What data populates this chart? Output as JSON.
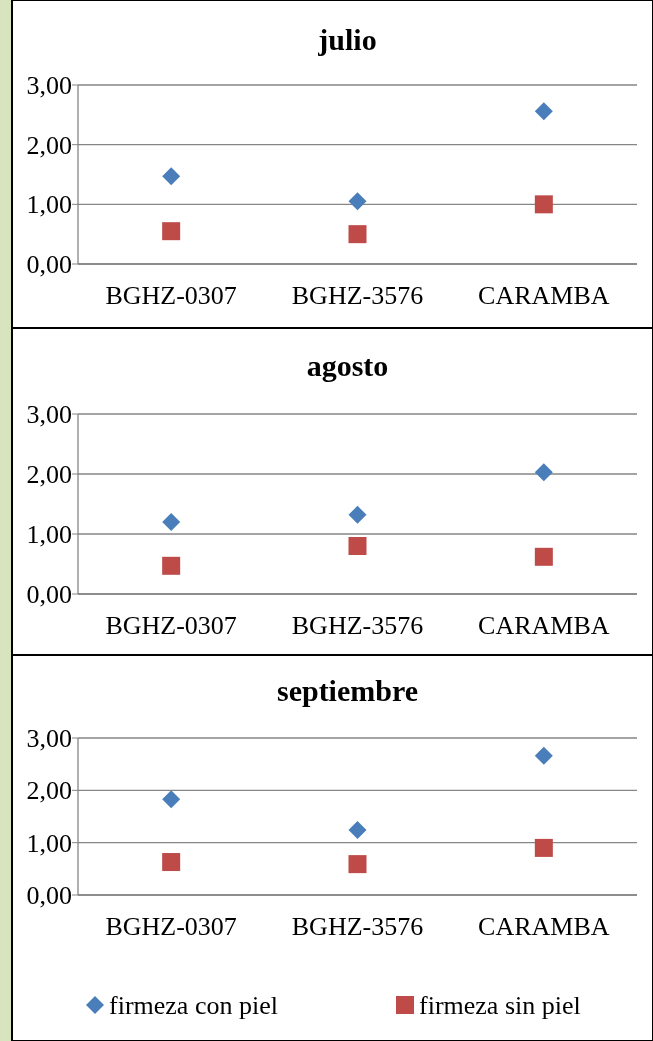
{
  "chart_data": [
    {
      "type": "scatter",
      "title": "julio",
      "categories": [
        "BGHZ-0307",
        "BGHZ-3576",
        "CARAMBA"
      ],
      "ylim": [
        0,
        3
      ],
      "yticks": [
        {
          "value": 0,
          "label": "0,00"
        },
        {
          "value": 1,
          "label": "1,00"
        },
        {
          "value": 2,
          "label": "2,00"
        },
        {
          "value": 3,
          "label": "3,00"
        }
      ],
      "grid": "y",
      "series": [
        {
          "color": "#4a7ebb",
          "marker": "diamond",
          "values": [
            1.47,
            1.05,
            2.56
          ]
        },
        {
          "color": "#be4b48",
          "marker": "square",
          "values": [
            0.55,
            0.5,
            1.0
          ]
        }
      ]
    },
    {
      "type": "scatter",
      "title": "agosto",
      "categories": [
        "BGHZ-0307",
        "BGHZ-3576",
        "CARAMBA"
      ],
      "ylim": [
        0,
        3
      ],
      "yticks": [
        {
          "value": 0,
          "label": "0,00"
        },
        {
          "value": 1,
          "label": "1,00"
        },
        {
          "value": 2,
          "label": "2,00"
        },
        {
          "value": 3,
          "label": "3,00"
        }
      ],
      "grid": "y",
      "series": [
        {
          "color": "#4a7ebb",
          "marker": "diamond",
          "values": [
            1.2,
            1.32,
            2.03
          ]
        },
        {
          "color": "#be4b48",
          "marker": "square",
          "values": [
            0.47,
            0.8,
            0.62
          ]
        }
      ]
    },
    {
      "type": "scatter",
      "title": "septiembre",
      "categories": [
        "BGHZ-0307",
        "BGHZ-3576",
        "CARAMBA"
      ],
      "ylim": [
        0,
        3
      ],
      "yticks": [
        {
          "value": 0,
          "label": "0,00"
        },
        {
          "value": 1,
          "label": "1,00"
        },
        {
          "value": 2,
          "label": "2,00"
        },
        {
          "value": 3,
          "label": "3,00"
        }
      ],
      "grid": "y",
      "legend": "bottom",
      "series": [
        {
          "name": "firmeza con piel",
          "color": "#4a7ebb",
          "marker": "diamond",
          "values": [
            1.83,
            1.24,
            2.66
          ]
        },
        {
          "name": "firmeza sin piel",
          "color": "#be4b48",
          "marker": "square",
          "values": [
            0.63,
            0.59,
            0.9
          ]
        }
      ]
    }
  ]
}
